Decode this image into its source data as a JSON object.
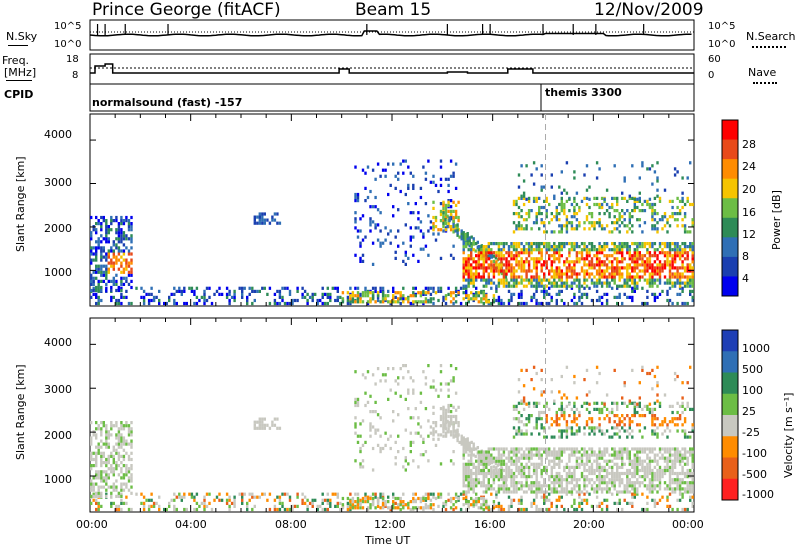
{
  "header": {
    "station": "Prince George (fitACF)",
    "beam": "Beam 15",
    "date": "12/Nov/2009"
  },
  "panels": {
    "nsky": {
      "label": "N.Sky",
      "ticks_left": [
        "10^5",
        "10^0"
      ],
      "ticks_right": [
        "10^5",
        "10^0"
      ],
      "right_label": "N.Search"
    },
    "freq": {
      "label_line1": "Freq.",
      "label_line2": "[MHz]",
      "ticks_left": [
        "18",
        "8"
      ],
      "ticks_right": [
        "60",
        "0"
      ],
      "right_label": "Nave"
    },
    "cpid": {
      "label": "CPID",
      "mode_a": "normalsound (fast) -157",
      "mode_b": "themis 3300"
    }
  },
  "x_axis": {
    "label": "Time UT",
    "ticks": [
      "00:00",
      "04:00",
      "08:00",
      "12:00",
      "16:00",
      "20:00",
      "00:00"
    ]
  },
  "power_panel": {
    "ylabel": "Slant Range [km]",
    "yticks": [
      "4000",
      "3000",
      "2000",
      "1000"
    ],
    "colorbar_label": "Power [dB]",
    "colorbar_ticks": [
      "28",
      "24",
      "20",
      "16",
      "12",
      "8",
      "4"
    ],
    "colors": [
      "#ff0000",
      "#e84a1a",
      "#ff8c00",
      "#f5c400",
      "#6cbd45",
      "#2e8b57",
      "#2f6fb5",
      "#1a3fb0",
      "#0000ee"
    ]
  },
  "velocity_panel": {
    "ylabel": "Slant Range [km]",
    "yticks": [
      "4000",
      "3000",
      "2000",
      "1000"
    ],
    "colorbar_label": "Velocity [m s⁻¹]",
    "colorbar_ticks": [
      "1000",
      "500",
      "100",
      "25",
      "-25",
      "-100",
      "-500",
      "-1000"
    ],
    "colors": [
      "#1f3fb5",
      "#2f6fb5",
      "#2e8b57",
      "#6cbd45",
      "#c8c8c0",
      "#ff8c00",
      "#e8601a",
      "#ff2020"
    ]
  },
  "chart_data": [
    {
      "type": "heatmap",
      "title": "Power",
      "xlabel": "Time UT",
      "ylabel": "Slant Range [km]",
      "xlim": [
        0,
        24
      ],
      "ylim": [
        180,
        4600
      ],
      "colorbar": {
        "label": "Power [dB]",
        "ticks": [
          28,
          24,
          20,
          16,
          12,
          8,
          4
        ]
      },
      "regions": [
        {
          "t": [
            0.0,
            1.7
          ],
          "range": [
            500,
            2200
          ],
          "level": "weak-strong"
        },
        {
          "t": [
            0.0,
            24.0
          ],
          "range": [
            200,
            600
          ],
          "level": "weak"
        },
        {
          "t": [
            6.5,
            7.5
          ],
          "range": [
            2050,
            2300
          ],
          "level": "weak"
        },
        {
          "t": [
            10.5,
            14.0
          ],
          "range": [
            2000,
            3500
          ],
          "level": "weak"
        },
        {
          "t": [
            14.5,
            24.0
          ],
          "range": [
            600,
            1600
          ],
          "level": "strong"
        },
        {
          "t": [
            17.0,
            24.0
          ],
          "range": [
            1800,
            3500
          ],
          "level": "moderate"
        }
      ]
    },
    {
      "type": "heatmap",
      "title": "Velocity",
      "xlabel": "Time UT",
      "ylabel": "Slant Range [km]",
      "xlim": [
        0,
        24
      ],
      "ylim": [
        180,
        4600
      ],
      "colorbar": {
        "label": "Velocity [m s-1]",
        "ticks": [
          1000,
          500,
          100,
          25,
          -25,
          -100,
          -500,
          -1000
        ]
      },
      "regions": [
        {
          "t": [
            0.0,
            1.7
          ],
          "range": [
            500,
            2200
          ],
          "velocity": "near-zero"
        },
        {
          "t": [
            14.5,
            24.0
          ],
          "range": [
            600,
            1600
          ],
          "velocity": "near-zero"
        },
        {
          "t": [
            17.5,
            24.0
          ],
          "range": [
            1900,
            3500
          ],
          "velocity": "-100 to -500"
        },
        {
          "t": [
            8.0,
            24.0
          ],
          "range": [
            200,
            600
          ],
          "velocity": "mixed positive"
        }
      ]
    }
  ]
}
